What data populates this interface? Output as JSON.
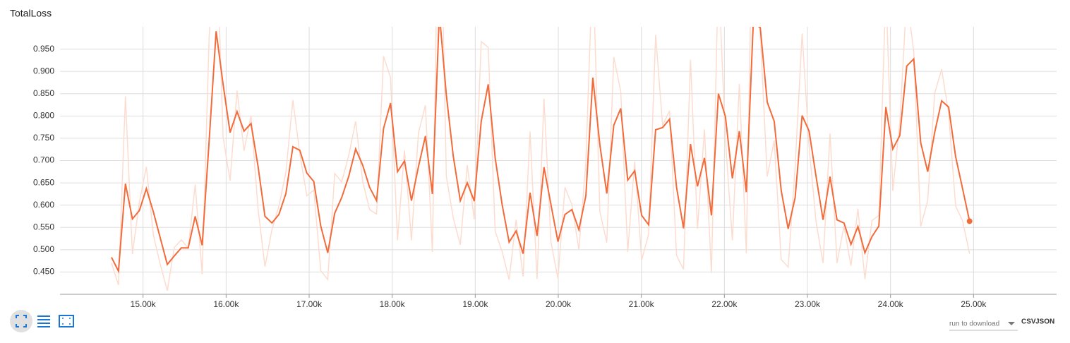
{
  "chart_data": {
    "type": "line",
    "title": "TotalLoss",
    "x": [
      14620,
      14704,
      14788,
      14872,
      14956,
      15040,
      15124,
      15208,
      15292,
      15376,
      15460,
      15544,
      15628,
      15712,
      15796,
      15880,
      15964,
      16048,
      16132,
      16216,
      16300,
      16384,
      16468,
      16552,
      16636,
      16720,
      16804,
      16888,
      16972,
      17056,
      17140,
      17224,
      17308,
      17392,
      17476,
      17560,
      17644,
      17728,
      17812,
      17896,
      17980,
      18064,
      18148,
      18232,
      18316,
      18400,
      18484,
      18568,
      18652,
      18736,
      18820,
      18904,
      18988,
      19072,
      19156,
      19240,
      19324,
      19408,
      19492,
      19576,
      19660,
      19744,
      19828,
      19912,
      19996,
      20080,
      20164,
      20248,
      20332,
      20416,
      20500,
      20584,
      20668,
      20752,
      20836,
      20920,
      21004,
      21088,
      21172,
      21256,
      21340,
      21424,
      21508,
      21592,
      21676,
      21760,
      21844,
      21928,
      22012,
      22096,
      22180,
      22264,
      22348,
      22432,
      22516,
      22600,
      22684,
      22768,
      22852,
      22936,
      23020,
      23104,
      23188,
      23272,
      23356,
      23440,
      23524,
      23608,
      23692,
      23776,
      23860,
      23944,
      24028,
      24112,
      24196,
      24280,
      24364,
      24448,
      24532,
      24616,
      24700,
      24784,
      24868,
      24952
    ],
    "series": [
      {
        "color": "#fddcd0",
        "values": [
          0.47,
          0.421,
          0.844,
          0.49,
          0.607,
          0.686,
          0.533,
          0.467,
          0.408,
          0.505,
          0.522,
          0.504,
          0.646,
          0.445,
          0.978,
          1.236,
          0.752,
          0.655,
          0.857,
          0.722,
          0.8,
          0.593,
          0.462,
          0.545,
          0.598,
          0.673,
          0.836,
          0.715,
          0.621,
          0.634,
          0.453,
          0.433,
          0.671,
          0.652,
          0.711,
          0.788,
          0.654,
          0.59,
          0.58,
          0.934,
          0.886,
          0.521,
          0.723,
          0.521,
          0.762,
          0.824,
          0.495,
          1.435,
          0.664,
          0.571,
          0.511,
          0.69,
          0.568,
          0.967,
          0.954,
          0.541,
          0.496,
          0.433,
          0.567,
          0.44,
          0.765,
          0.434,
          0.839,
          0.517,
          0.435,
          0.64,
          0.601,
          0.5,
          0.697,
          1.151,
          0.586,
          0.516,
          0.932,
          0.855,
          0.495,
          0.698,
          0.477,
          0.535,
          0.982,
          0.779,
          0.812,
          0.487,
          0.456,
          0.926,
          0.547,
          0.77,
          0.448,
          1.123,
          0.748,
          0.521,
          0.872,
          0.492,
          1.391,
          0.986,
          0.664,
          0.745,
          0.478,
          0.461,
          0.687,
          0.985,
          0.731,
          0.562,
          0.47,
          0.761,
          0.47,
          0.553,
          0.464,
          0.592,
          0.434,
          0.565,
          0.577,
          1.087,
          0.632,
          0.786,
          1.068,
          0.944,
          0.552,
          0.61,
          0.851,
          0.905,
          0.806,
          0.598,
          0.565,
          0.491
        ]
      },
      {
        "color": "#f26b3a",
        "values": [
          0.483,
          0.452,
          0.648,
          0.569,
          0.588,
          0.637,
          0.585,
          0.526,
          0.467,
          0.486,
          0.504,
          0.504,
          0.575,
          0.51,
          0.744,
          0.99,
          0.871,
          0.763,
          0.81,
          0.766,
          0.783,
          0.688,
          0.575,
          0.56,
          0.579,
          0.626,
          0.731,
          0.723,
          0.672,
          0.653,
          0.553,
          0.493,
          0.582,
          0.617,
          0.664,
          0.726,
          0.69,
          0.64,
          0.61,
          0.772,
          0.829,
          0.675,
          0.699,
          0.61,
          0.686,
          0.755,
          0.625,
          1.03,
          0.847,
          0.709,
          0.61,
          0.65,
          0.609,
          0.788,
          0.871,
          0.706,
          0.601,
          0.517,
          0.542,
          0.491,
          0.628,
          0.531,
          0.685,
          0.601,
          0.518,
          0.579,
          0.59,
          0.545,
          0.621,
          0.886,
          0.736,
          0.626,
          0.779,
          0.817,
          0.656,
          0.677,
          0.577,
          0.556,
          0.769,
          0.774,
          0.793,
          0.64,
          0.548,
          0.737,
          0.642,
          0.706,
          0.577,
          0.85,
          0.799,
          0.66,
          0.766,
          0.629,
          1.01,
          0.998,
          0.831,
          0.788,
          0.633,
          0.547,
          0.617,
          0.801,
          0.766,
          0.664,
          0.567,
          0.664,
          0.567,
          0.56,
          0.512,
          0.552,
          0.493,
          0.529,
          0.553,
          0.82,
          0.726,
          0.756,
          0.912,
          0.928,
          0.74,
          0.675,
          0.763,
          0.834,
          0.82,
          0.709,
          0.637,
          0.564
        ]
      }
    ],
    "xlim": [
      14000,
      26000
    ],
    "ylim": [
      0.4,
      1.0
    ],
    "xticks": [
      {
        "value": 15000,
        "label": "15.00k"
      },
      {
        "value": 16000,
        "label": "16.00k"
      },
      {
        "value": 17000,
        "label": "17.00k"
      },
      {
        "value": 18000,
        "label": "18.00k"
      },
      {
        "value": 19000,
        "label": "19.00k"
      },
      {
        "value": 20000,
        "label": "20.00k"
      },
      {
        "value": 21000,
        "label": "21.00k"
      },
      {
        "value": 22000,
        "label": "22.00k"
      },
      {
        "value": 23000,
        "label": "23.00k"
      },
      {
        "value": 24000,
        "label": "24.00k"
      },
      {
        "value": 25000,
        "label": "25.00k"
      }
    ],
    "yticks": [
      {
        "value": 0.45,
        "label": "0.450"
      },
      {
        "value": 0.5,
        "label": "0.500"
      },
      {
        "value": 0.55,
        "label": "0.550"
      },
      {
        "value": 0.6,
        "label": "0.600"
      },
      {
        "value": 0.65,
        "label": "0.650"
      },
      {
        "value": 0.7,
        "label": "0.700"
      },
      {
        "value": 0.75,
        "label": "0.750"
      },
      {
        "value": 0.8,
        "label": "0.800"
      },
      {
        "value": 0.85,
        "label": "0.850"
      },
      {
        "value": 0.9,
        "label": "0.900"
      },
      {
        "value": 0.95,
        "label": "0.950"
      }
    ],
    "grid": true
  },
  "controls": {
    "run_select": "run to download",
    "csv": "CSV",
    "json": "JSON"
  }
}
